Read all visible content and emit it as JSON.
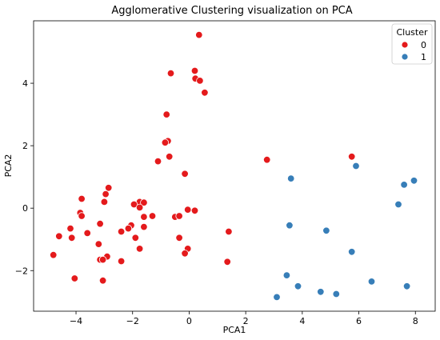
{
  "chart_data": {
    "type": "scatter",
    "title": "Agglomerative Clustering visualization on PCA",
    "xlabel": "PCA1",
    "ylabel": "PCA2",
    "xlim": [
      -5.5,
      8.7
    ],
    "ylim": [
      -3.3,
      6.0
    ],
    "xticks": [
      -4,
      -2,
      0,
      2,
      4,
      6,
      8
    ],
    "yticks": [
      -2,
      0,
      2,
      4
    ],
    "xtick_labels": [
      "−4",
      "−2",
      "0",
      "2",
      "4",
      "6",
      "8"
    ],
    "ytick_labels": [
      "−2",
      "0",
      "2",
      "4"
    ],
    "grid": false,
    "legend": {
      "title": "Cluster",
      "placement": "top-right",
      "entries": [
        {
          "label": "0",
          "color": "#e41a1c"
        },
        {
          "label": "1",
          "color": "#377eb8"
        }
      ]
    },
    "series": [
      {
        "color": "#e41a1c",
        "points": [
          [
            0.35,
            5.55
          ],
          [
            0.2,
            4.4
          ],
          [
            -0.65,
            4.32
          ],
          [
            0.22,
            4.15
          ],
          [
            0.38,
            4.08
          ],
          [
            0.55,
            3.7
          ],
          [
            -0.8,
            3.0
          ],
          [
            -0.75,
            2.15
          ],
          [
            -0.85,
            2.1
          ],
          [
            -0.7,
            1.65
          ],
          [
            -1.1,
            1.5
          ],
          [
            -0.15,
            1.1
          ],
          [
            2.75,
            1.55
          ],
          [
            5.75,
            1.65
          ],
          [
            -3.8,
            0.3
          ],
          [
            -2.95,
            0.45
          ],
          [
            -2.85,
            0.65
          ],
          [
            -3.0,
            0.2
          ],
          [
            -1.75,
            0.2
          ],
          [
            -1.6,
            0.18
          ],
          [
            -1.95,
            0.12
          ],
          [
            -1.75,
            0.02
          ],
          [
            -3.85,
            -0.15
          ],
          [
            -3.8,
            -0.25
          ],
          [
            -1.6,
            -0.28
          ],
          [
            -1.3,
            -0.25
          ],
          [
            -0.5,
            -0.28
          ],
          [
            -0.35,
            -0.25
          ],
          [
            -0.05,
            -0.05
          ],
          [
            0.2,
            -0.08
          ],
          [
            -3.15,
            -0.5
          ],
          [
            -2.05,
            -0.55
          ],
          [
            -2.15,
            -0.65
          ],
          [
            -1.6,
            -0.6
          ],
          [
            -4.2,
            -0.65
          ],
          [
            -3.6,
            -0.8
          ],
          [
            -2.4,
            -0.75
          ],
          [
            -4.6,
            -0.9
          ],
          [
            -4.15,
            -0.95
          ],
          [
            -1.9,
            -0.95
          ],
          [
            -0.35,
            -0.95
          ],
          [
            1.4,
            -0.75
          ],
          [
            -3.2,
            -1.15
          ],
          [
            -1.75,
            -1.3
          ],
          [
            -0.05,
            -1.3
          ],
          [
            -0.15,
            -1.45
          ],
          [
            -4.8,
            -1.5
          ],
          [
            -2.9,
            -1.55
          ],
          [
            -3.15,
            -1.65
          ],
          [
            -3.05,
            -1.65
          ],
          [
            -2.4,
            -1.7
          ],
          [
            1.35,
            -1.72
          ],
          [
            -4.05,
            -2.25
          ],
          [
            -3.05,
            -2.32
          ]
        ]
      },
      {
        "color": "#377eb8",
        "points": [
          [
            5.9,
            1.35
          ],
          [
            3.6,
            0.95
          ],
          [
            7.95,
            0.88
          ],
          [
            7.6,
            0.75
          ],
          [
            7.4,
            0.12
          ],
          [
            3.55,
            -0.55
          ],
          [
            4.85,
            -0.72
          ],
          [
            5.75,
            -1.4
          ],
          [
            3.45,
            -2.15
          ],
          [
            6.45,
            -2.35
          ],
          [
            3.85,
            -2.5
          ],
          [
            7.7,
            -2.5
          ],
          [
            4.65,
            -2.68
          ],
          [
            5.2,
            -2.75
          ],
          [
            3.1,
            -2.85
          ]
        ]
      }
    ]
  }
}
